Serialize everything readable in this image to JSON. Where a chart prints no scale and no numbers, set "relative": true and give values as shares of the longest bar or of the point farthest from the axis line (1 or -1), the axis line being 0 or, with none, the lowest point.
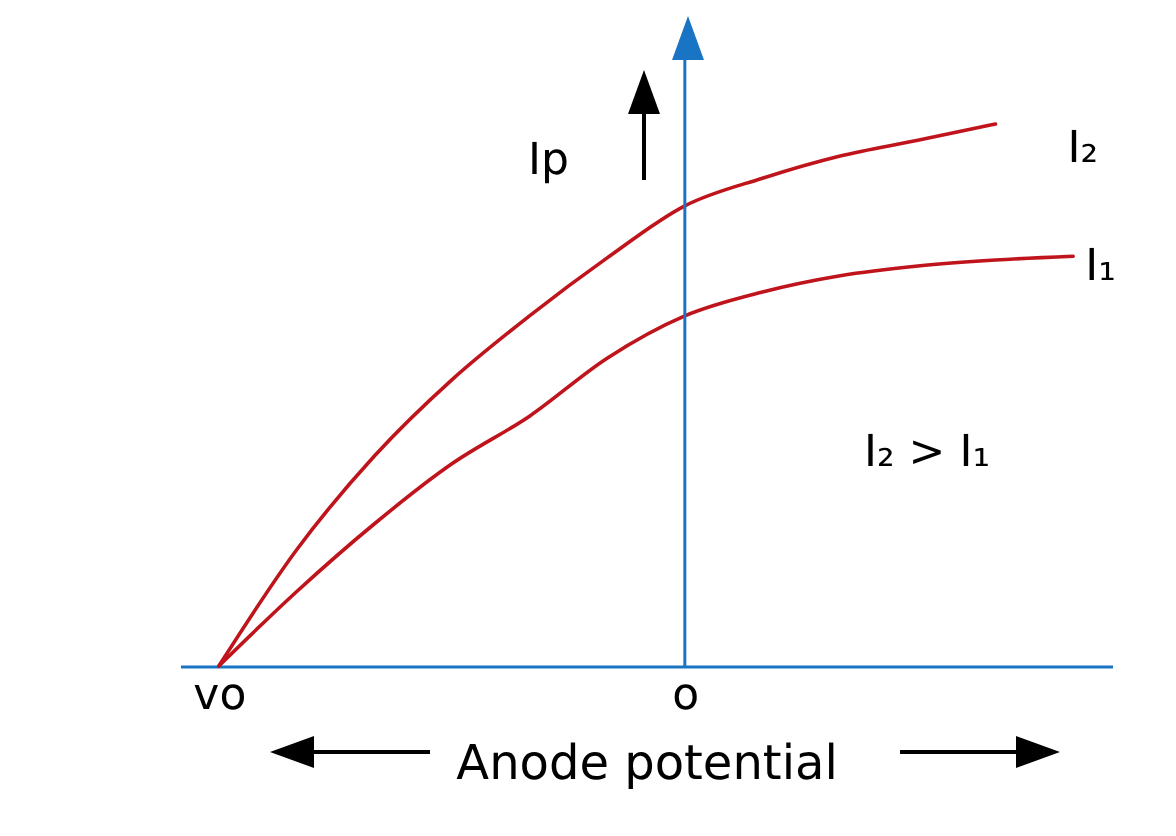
{
  "chart_data": {
    "type": "line",
    "relative": true,
    "xlabel": "Anode potential",
    "categories": [
      "vo",
      null,
      null,
      null,
      null,
      null,
      "o",
      null,
      null,
      null,
      null,
      null
    ],
    "grid": false,
    "marker": "none",
    "line_style": "solid",
    "series": [
      {
        "name": "I₂",
        "color": "#c0141c",
        "values": [
          0,
          0.214,
          0.387,
          0.528,
          0.646,
          0.753,
          0.849,
          0.9,
          0.941,
          0.97,
          1,
          null
        ]
      },
      {
        "name": "I₁",
        "color": "#c0141c",
        "values": [
          0,
          0.137,
          0.262,
          0.373,
          0.461,
          0.568,
          0.646,
          0.69,
          0.72,
          0.738,
          0.749,
          0.756
        ]
      }
    ],
    "ref_lines": [
      {
        "axis": "x",
        "value": "o",
        "color": "#1a74c4"
      }
    ],
    "annotations": [
      "Ip",
      "I₂ > I₁"
    ]
  }
}
